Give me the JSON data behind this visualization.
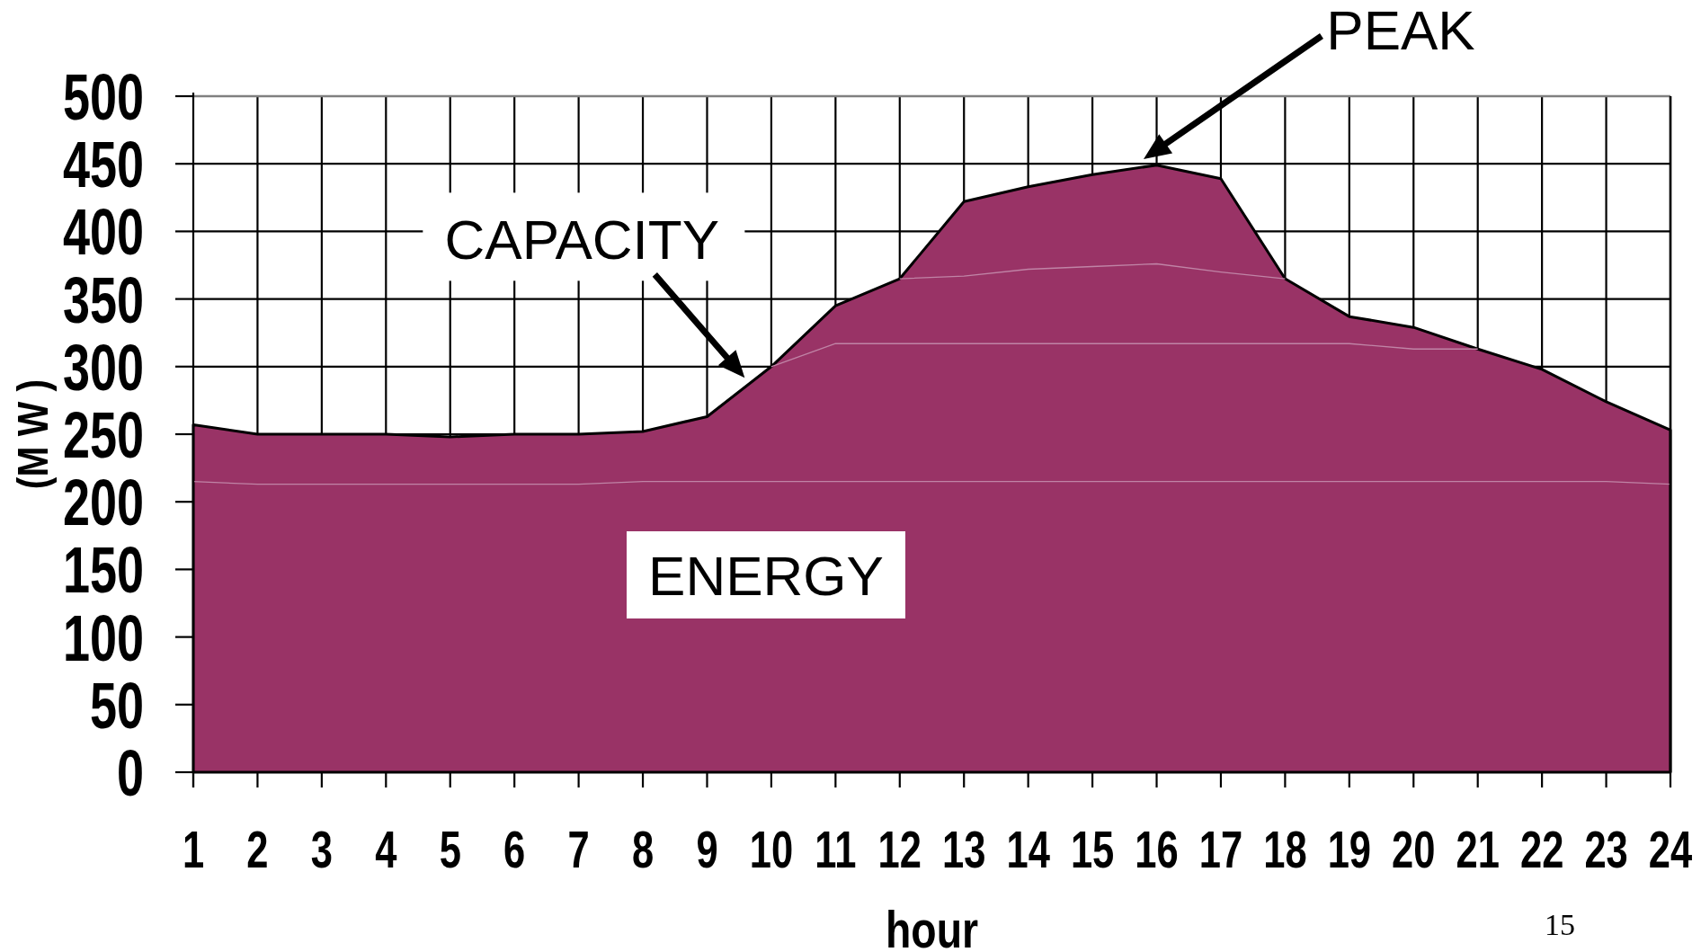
{
  "chart_data": {
    "type": "area",
    "xlabel": "hour",
    "ylabel": "(M W )",
    "x": [
      1,
      2,
      3,
      4,
      5,
      6,
      7,
      8,
      9,
      10,
      11,
      12,
      13,
      14,
      15,
      16,
      17,
      18,
      19,
      20,
      21,
      22,
      23,
      24
    ],
    "xlim": [
      1,
      24
    ],
    "xticks": [
      1,
      2,
      3,
      4,
      5,
      6,
      7,
      8,
      9,
      10,
      11,
      12,
      13,
      14,
      15,
      16,
      17,
      18,
      19,
      20,
      21,
      22,
      23,
      24
    ],
    "ylim": [
      0,
      500
    ],
    "yticks": [
      0,
      50,
      100,
      150,
      200,
      250,
      300,
      350,
      400,
      450,
      500
    ],
    "grid": true,
    "series": [
      {
        "color": "#993366",
        "values": [
          257,
          250,
          250,
          250,
          248,
          250,
          250,
          252,
          263,
          300,
          345,
          365,
          422,
          433,
          442,
          449,
          439,
          365,
          337,
          329,
          313,
          298,
          274,
          253
        ]
      },
      {
        "type": "line",
        "color": "#c084a6",
        "values": [
          null,
          null,
          null,
          null,
          null,
          null,
          null,
          null,
          null,
          null,
          null,
          365,
          367,
          372,
          374,
          376,
          370,
          365,
          null,
          null,
          null,
          null,
          null,
          null
        ]
      },
      {
        "type": "line",
        "color": "#c084a6",
        "values": [
          null,
          null,
          null,
          null,
          null,
          null,
          null,
          null,
          null,
          300,
          317,
          317,
          317,
          317,
          317,
          317,
          317,
          317,
          317,
          313,
          313,
          null,
          null,
          null
        ]
      },
      {
        "type": "line",
        "color": "#c084a6",
        "values": [
          215,
          213,
          213,
          213,
          213,
          213,
          213,
          215,
          215,
          215,
          215,
          215,
          215,
          215,
          215,
          215,
          215,
          215,
          215,
          215,
          215,
          215,
          215,
          213
        ]
      }
    ],
    "annotations": [
      "PEAK",
      {
        "text": "CAPACITY",
        "x": 9.6,
        "y": 285
      },
      "ENERGY",
      "15"
    ]
  }
}
